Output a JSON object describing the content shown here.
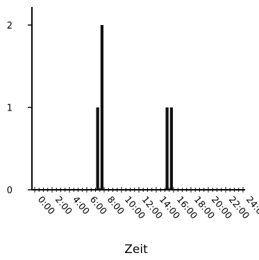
{
  "chart_data": {
    "type": "bar",
    "xlabel": "Zeit",
    "ylabel": "",
    "title": "",
    "x_tick_labels": [
      "0:00",
      "2:00",
      "4:00",
      "6:00",
      "8:00",
      "10:00",
      "12:00",
      "14:00",
      "16:00",
      "18:00",
      "20:00",
      "22:00",
      "24:00"
    ],
    "y_tick_labels": [
      "0",
      "1",
      "2"
    ],
    "xlim": [
      0,
      24
    ],
    "ylim": [
      0,
      2
    ],
    "bin_width_hours": 0.5,
    "bars": [
      {
        "x": 7.0,
        "value": 1
      },
      {
        "x": 7.5,
        "value": 2
      },
      {
        "x": 15.0,
        "value": 1
      },
      {
        "x": 15.5,
        "value": 1
      }
    ],
    "grid": false,
    "legend": "none"
  }
}
